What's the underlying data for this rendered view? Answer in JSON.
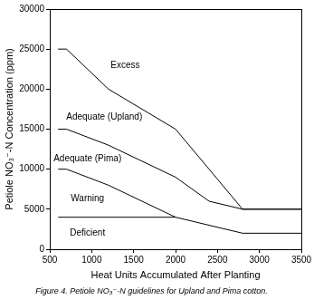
{
  "chart_data": {
    "type": "line",
    "title": "Figure 4. Petiole NO₃⁻-N guidelines for Upland and Pima cotton.",
    "x_label": "Heat Units Accumulated After Planting",
    "y_label": "Petiole NO₃⁻-N Concentration (ppm)",
    "xlim": [
      500,
      3500
    ],
    "xticks": [
      500,
      1000,
      1500,
      2000,
      2500,
      3000,
      3500
    ],
    "ylim": [
      0,
      30000
    ],
    "yticks": [
      0,
      5000,
      10000,
      15000,
      20000,
      25000,
      30000
    ],
    "grid": false,
    "series": [
      {
        "color": "#000000",
        "x": [
          600,
          700,
          1200,
          2000,
          2800,
          3500
        ],
        "values": [
          25000,
          25000,
          20000,
          15000,
          5000,
          5000
        ]
      },
      {
        "color": "#000000",
        "x": [
          600,
          700,
          1200,
          2000,
          2400,
          2800,
          3500
        ],
        "values": [
          15000,
          15000,
          13000,
          9000,
          6000,
          5000,
          5000
        ]
      },
      {
        "color": "#000000",
        "x": [
          600,
          700,
          1200,
          2000,
          2800,
          3500
        ],
        "values": [
          10000,
          10000,
          8000,
          4000,
          2000,
          2000
        ]
      },
      {
        "color": "#000000",
        "x": [
          600,
          2000
        ],
        "values": [
          4000,
          4000
        ]
      }
    ],
    "annotations": [
      {
        "text": "Excess",
        "x": 1400,
        "y": 23000
      },
      {
        "text": "Adequate (Upland)",
        "x": 1150,
        "y": 16500
      },
      {
        "text": "Adequate (Pima)",
        "x": 950,
        "y": 11300
      },
      {
        "text": "Warning",
        "x": 950,
        "y": 6300
      },
      {
        "text": "Deficient",
        "x": 950,
        "y": 2000
      }
    ]
  }
}
